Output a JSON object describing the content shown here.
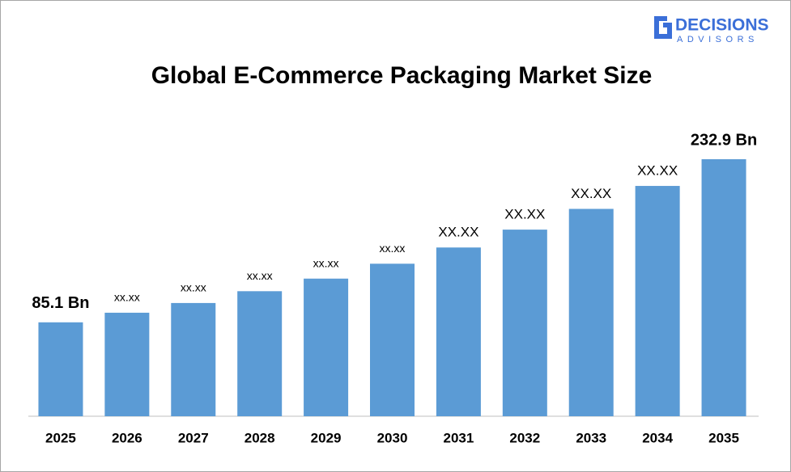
{
  "chart_data": {
    "type": "bar",
    "title": "Global E-Commerce Packaging Market Size",
    "logo": {
      "name": "DECISIONS",
      "tagline": "ADVISORS"
    },
    "categories": [
      "2025",
      "2026",
      "2027",
      "2028",
      "2029",
      "2030",
      "2031",
      "2032",
      "2033",
      "2034",
      "2035"
    ],
    "values": [
      85.1,
      93.8,
      102.6,
      113.3,
      124.7,
      138.2,
      152.9,
      169.1,
      187.9,
      208.7,
      232.9
    ],
    "value_labels": [
      "85.1 Bn",
      "xx.xx",
      "xx.xx",
      "xx.xx",
      "xx.xx",
      "xx.xx",
      "XX.XX",
      "XX.XX",
      "XX.XX",
      "XX.XX",
      "232.9 Bn"
    ],
    "color": "#5b9bd5"
  }
}
